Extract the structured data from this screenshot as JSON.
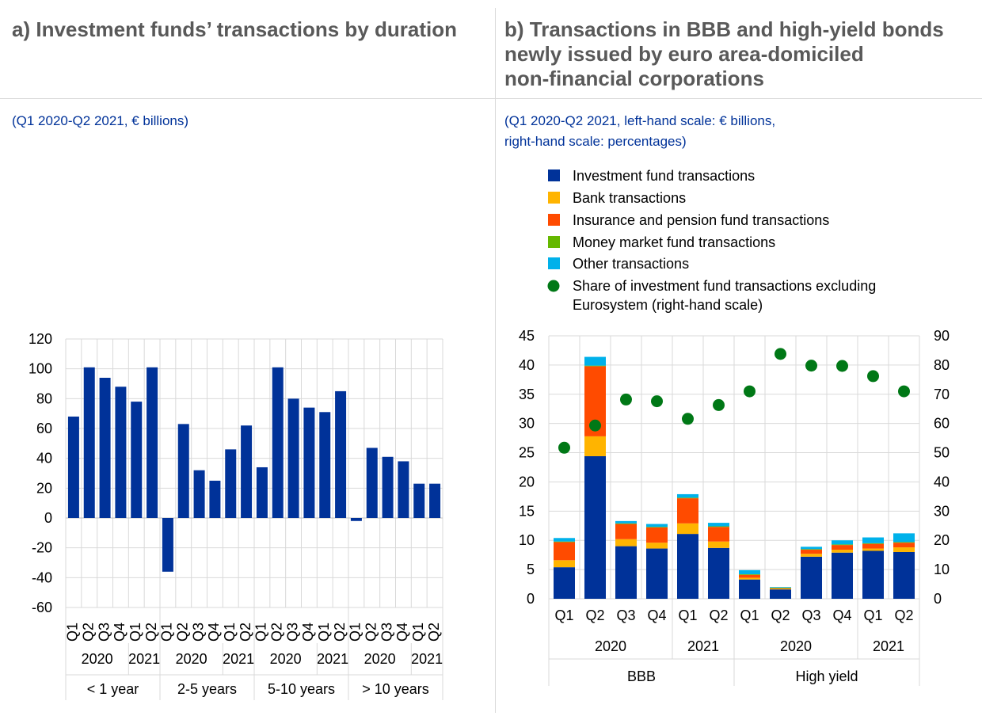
{
  "panels": {
    "a": {
      "title": "a) Investment funds’ transactions by duration",
      "subtitle": "(Q1 2020-Q2 2021, € billions)"
    },
    "b": {
      "title_lines": [
        "b) Transactions in BBB and high-yield bonds",
        "newly issued by euro area-domiciled",
        "non-financial corporations"
      ],
      "subtitle_lines": [
        "(Q1 2020-Q2 2021, left-hand scale: € billions,",
        "right-hand scale: percentages)"
      ]
    }
  },
  "colors": {
    "investment": "#003299",
    "bank": "#FFB400",
    "insurance": "#FF4B00",
    "mmf": "#65B800",
    "other": "#00B1EA",
    "share": "#007816",
    "grid": "#d9d9d9"
  },
  "chart_data": [
    {
      "type": "bar",
      "ylim": [
        -60,
        120
      ],
      "yticks": [
        -60,
        -40,
        -20,
        0,
        20,
        40,
        60,
        80,
        100,
        120
      ],
      "grid": true,
      "groups": [
        {
          "label": "< 1 year",
          "years": [
            {
              "label": "2020",
              "span": 4
            },
            {
              "label": "2021",
              "span": 2
            }
          ]
        },
        {
          "label": "2-5 years",
          "years": [
            {
              "label": "2020",
              "span": 4
            },
            {
              "label": "2021",
              "span": 2
            }
          ]
        },
        {
          "label": "5-10 years",
          "years": [
            {
              "label": "2020",
              "span": 4
            },
            {
              "label": "2021",
              "span": 2
            }
          ]
        },
        {
          "label": "> 10 years",
          "years": [
            {
              "label": "2020",
              "span": 4
            },
            {
              "label": "2021",
              "span": 2
            }
          ]
        }
      ],
      "categories": [
        "Q1",
        "Q2",
        "Q3",
        "Q4",
        "Q1",
        "Q2",
        "Q1",
        "Q2",
        "Q3",
        "Q4",
        "Q1",
        "Q2",
        "Q1",
        "Q2",
        "Q3",
        "Q4",
        "Q1",
        "Q2",
        "Q1",
        "Q2",
        "Q3",
        "Q4",
        "Q1",
        "Q2"
      ],
      "values": [
        68,
        101,
        94,
        88,
        78,
        101,
        -36,
        63,
        32,
        25,
        46,
        62,
        34,
        101,
        80,
        74,
        71,
        85,
        -2,
        47,
        41,
        38,
        23,
        23
      ]
    },
    {
      "type": "bar",
      "stacked": true,
      "ylim": [
        0,
        45
      ],
      "yticks": [
        0,
        5,
        10,
        15,
        20,
        25,
        30,
        35,
        40,
        45
      ],
      "y2lim": [
        0,
        90
      ],
      "y2ticks": [
        0,
        10,
        20,
        30,
        40,
        50,
        60,
        70,
        80,
        90
      ],
      "grid": true,
      "legend_position": "top",
      "groups": [
        {
          "label": "BBB",
          "years": [
            {
              "label": "2020",
              "span": 4
            },
            {
              "label": "2021",
              "span": 2
            }
          ]
        },
        {
          "label": "High yield",
          "years": [
            {
              "label": "2020",
              "span": 4
            },
            {
              "label": "2021",
              "span": 2
            }
          ]
        }
      ],
      "categories": [
        "Q1",
        "Q2",
        "Q3",
        "Q4",
        "Q1",
        "Q2",
        "Q1",
        "Q2",
        "Q3",
        "Q4",
        "Q1",
        "Q2"
      ],
      "series": [
        {
          "name": "Investment fund transactions",
          "color_key": "investment",
          "values": [
            5.4,
            24.4,
            9.0,
            8.6,
            11.1,
            8.7,
            3.3,
            1.6,
            7.2,
            7.9,
            8.2,
            8.0
          ]
        },
        {
          "name": "Bank transactions",
          "color_key": "bank",
          "values": [
            1.2,
            3.4,
            1.2,
            1.0,
            1.8,
            1.1,
            0.3,
            0.1,
            0.5,
            0.5,
            0.4,
            0.8
          ]
        },
        {
          "name": "Insurance and pension fund transactions",
          "color_key": "insurance",
          "values": [
            3.1,
            12.0,
            2.6,
            2.6,
            4.3,
            2.5,
            0.5,
            0.1,
            0.7,
            0.8,
            0.8,
            0.8
          ]
        },
        {
          "name": "Money market fund transactions",
          "color_key": "mmf",
          "values": [
            0.1,
            0.1,
            0.1,
            0.1,
            0.1,
            0.1,
            0.1,
            0.1,
            0.1,
            0.1,
            0.1,
            0.1
          ]
        },
        {
          "name": "Other transactions",
          "color_key": "other",
          "values": [
            0.6,
            1.5,
            0.4,
            0.5,
            0.6,
            0.6,
            0.7,
            0.1,
            0.4,
            0.7,
            1.0,
            1.5
          ]
        }
      ],
      "points": {
        "name": "Share of investment fund transactions excluding Eurosystem (right-hand scale)",
        "name_lines": [
          "Share of investment fund transactions excluding",
          "Eurosystem (right-hand scale)"
        ],
        "color_key": "share",
        "axis": "right",
        "values": [
          51.7,
          59.3,
          68.2,
          67.6,
          61.6,
          66.3,
          71.0,
          83.8,
          79.8,
          79.7,
          76.2,
          71.0
        ]
      }
    }
  ]
}
